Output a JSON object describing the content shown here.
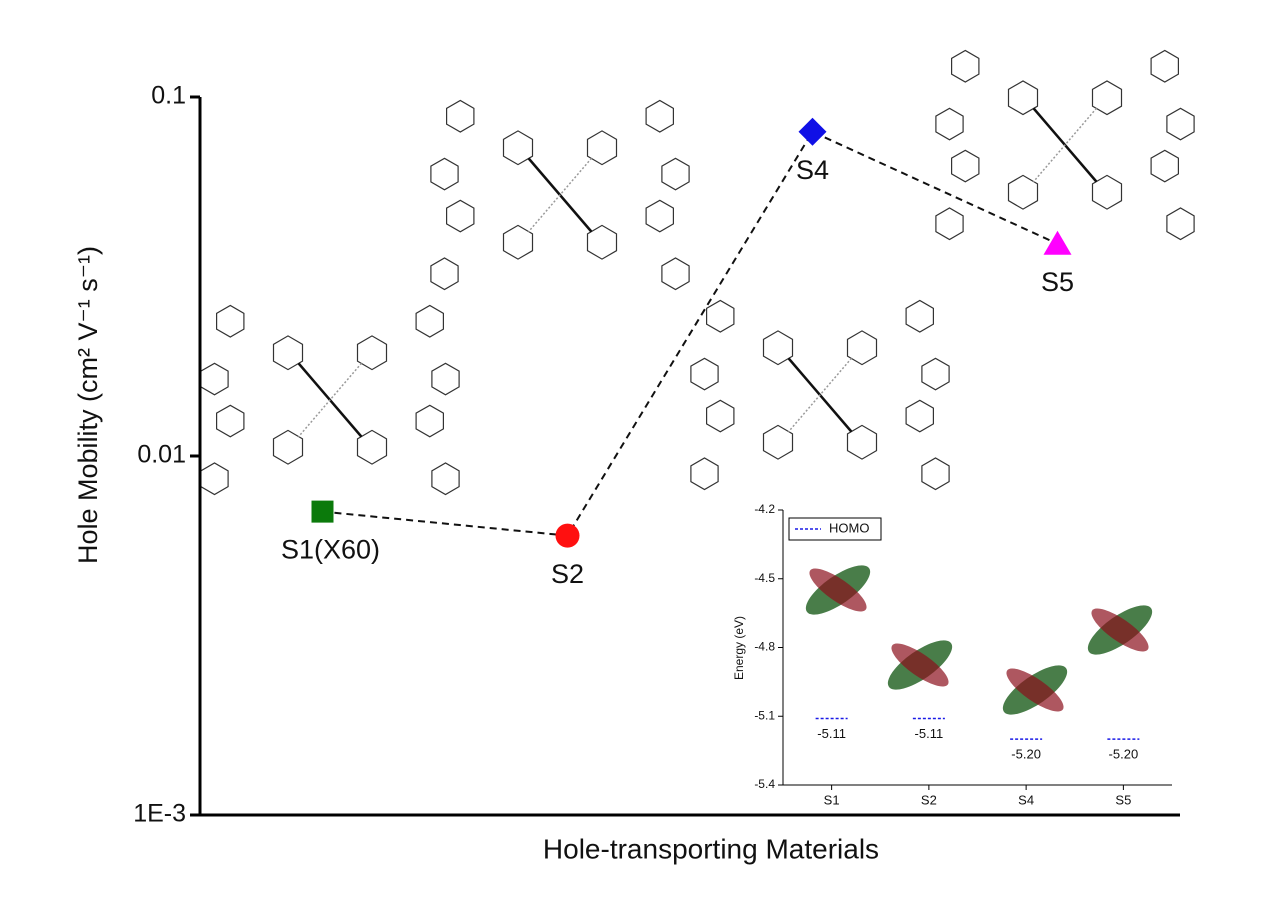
{
  "chart_data": [
    {
      "type": "line",
      "x_label": "Hole-transporting Materials",
      "y_label": "Hole Mobility (cm² V⁻¹ s⁻¹)",
      "categories": [
        "S1(X60)",
        "S2",
        "S4",
        "S5"
      ],
      "values": [
        0.007,
        0.006,
        0.08,
        0.039
      ],
      "marker_colors": [
        "#0b7a0b",
        "#ff1010",
        "#1010e6",
        "#ff00ff"
      ],
      "markers": [
        "square",
        "circle",
        "diamond",
        "triangle"
      ],
      "line_color": "#111",
      "log_scale": true,
      "ylim": [
        0.001,
        0.1
      ],
      "yticks": [
        {
          "value": 0.001,
          "label": "1E-3"
        },
        0.01,
        0.1
      ]
    },
    {
      "type": "level",
      "y_label": "Energy (eV)",
      "categories": [
        "S1",
        "S2",
        "S4",
        "S5"
      ],
      "series": [
        {
          "name": "HOMO",
          "color": "#1a1ae6",
          "values": [
            -5.11,
            -5.11,
            -5.2,
            -5.2
          ],
          "value_labels": [
            "-5.11",
            "-5.11",
            "-5.20",
            "-5.20"
          ]
        }
      ],
      "ylim": [
        -5.4,
        -4.2
      ],
      "yticks": [
        -4.2,
        -4.5,
        -4.8,
        -5.1,
        -5.4
      ],
      "legend": "upper left"
    }
  ]
}
